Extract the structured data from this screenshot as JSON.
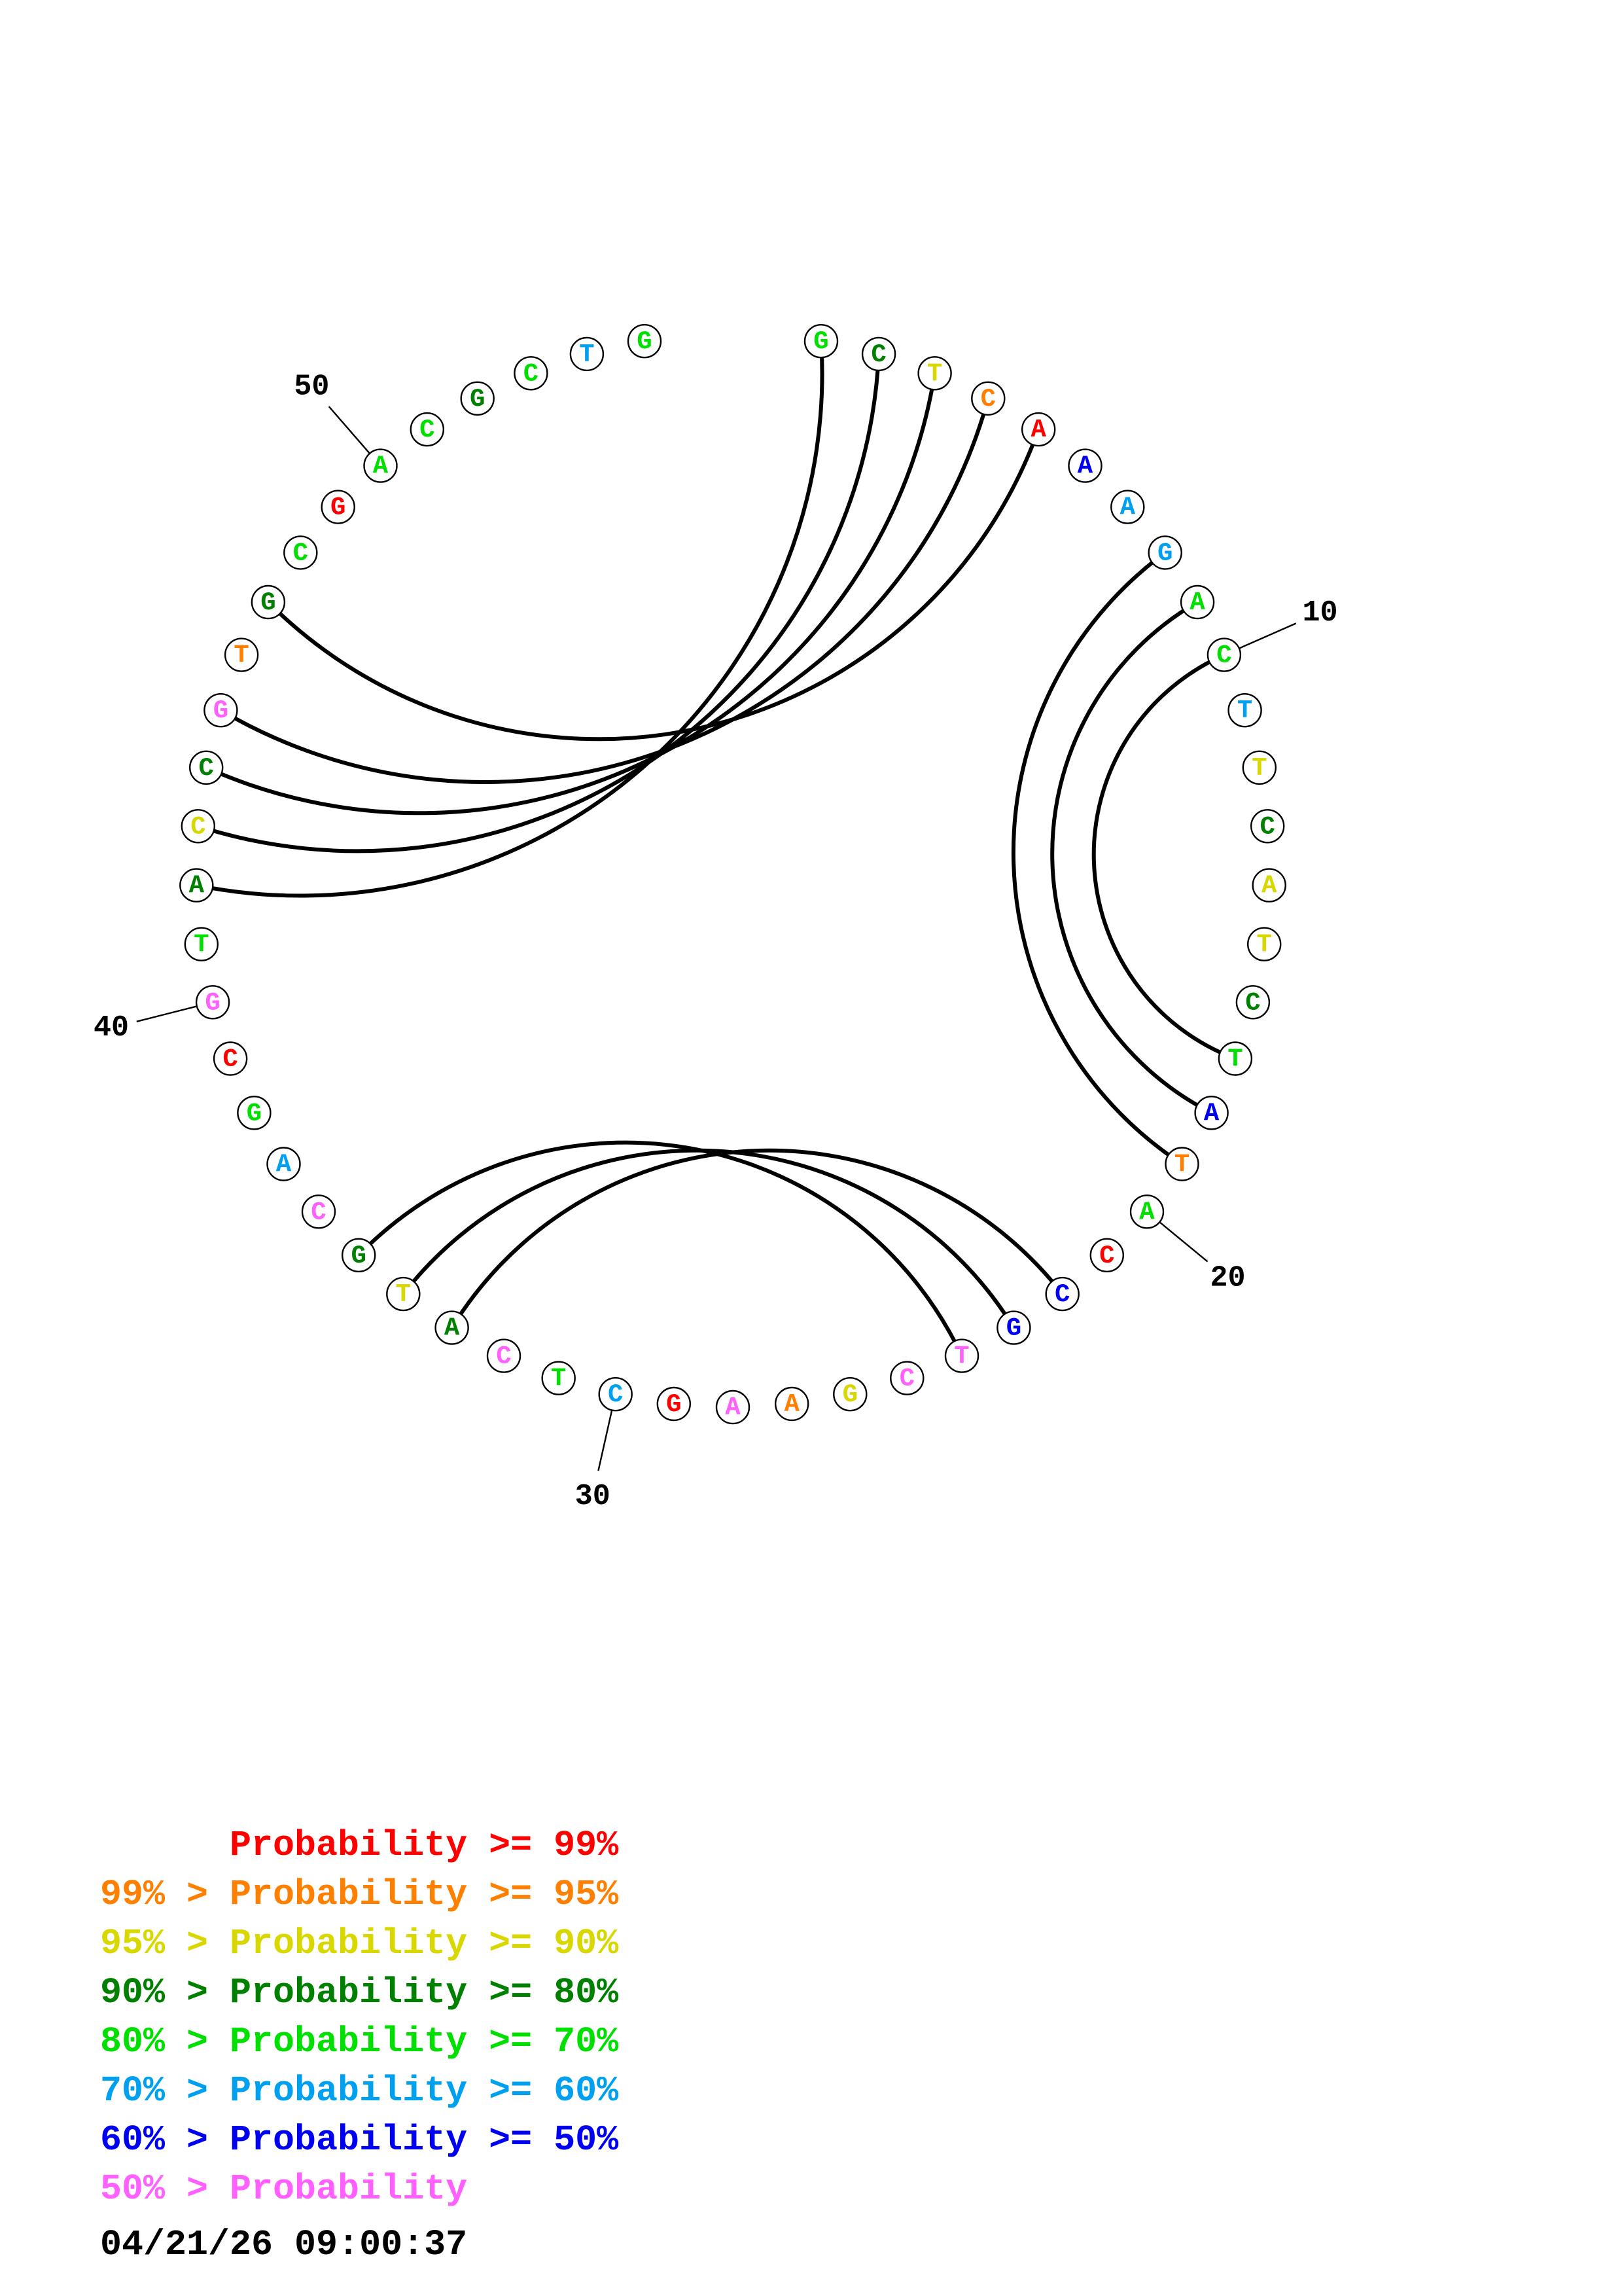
{
  "structure": {
    "sequence": "GCTCAAAGACTTCATCTATACCGTCGAAGCTCATGCAGCGTACCGTGCGACGCTG",
    "probability_class": [
      4,
      3,
      2,
      1,
      0,
      6,
      5,
      5,
      4,
      4,
      5,
      2,
      3,
      2,
      2,
      3,
      4,
      6,
      1,
      4,
      0,
      6,
      6,
      7,
      7,
      2,
      1,
      7,
      0,
      5,
      4,
      7,
      3,
      2,
      3,
      7,
      5,
      4,
      0,
      7,
      4,
      3,
      2,
      3,
      7,
      1,
      3,
      4,
      0,
      4,
      4,
      3,
      4,
      5,
      4
    ],
    "pairs": [
      [
        1,
        42
      ],
      [
        2,
        43
      ],
      [
        3,
        44
      ],
      [
        4,
        45
      ],
      [
        5,
        47
      ],
      [
        8,
        19
      ],
      [
        9,
        18
      ],
      [
        10,
        17
      ],
      [
        22,
        33
      ],
      [
        23,
        34
      ],
      [
        24,
        35
      ]
    ],
    "position_markers": [
      "10",
      "20",
      "30",
      "40",
      "50"
    ]
  },
  "legend": {
    "colors": [
      "#ff0000",
      "#ff8000",
      "#d8d800",
      "#008000",
      "#00e000",
      "#00a0f0",
      "#0000f0",
      "#ff60ff"
    ],
    "rows": [
      {
        "prefix": "",
        "label": "Probability",
        "suffix": " >= 99%"
      },
      {
        "prefix": "99% > ",
        "label": "Probability",
        "suffix": " >= 95%"
      },
      {
        "prefix": "95% > ",
        "label": "Probability",
        "suffix": " >= 90%"
      },
      {
        "prefix": "90% > ",
        "label": "Probability",
        "suffix": " >= 80%"
      },
      {
        "prefix": "80% > ",
        "label": "Probability",
        "suffix": " >= 70%"
      },
      {
        "prefix": "70% > ",
        "label": "Probability",
        "suffix": " >= 60%"
      },
      {
        "prefix": "60% > ",
        "label": "Probability",
        "suffix": " >= 50%"
      },
      {
        "prefix": "50% > ",
        "label": "Probability",
        "suffix": ""
      }
    ]
  },
  "timestamp": "04/21/26 09:00:37"
}
